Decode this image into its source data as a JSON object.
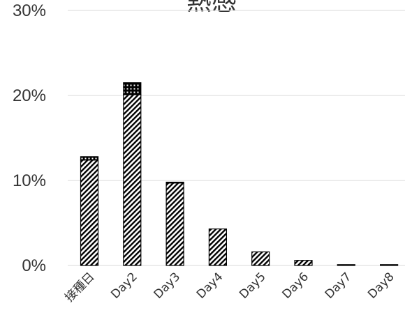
{
  "chart_data": {
    "type": "bar",
    "stacked": true,
    "title": "熱感",
    "xlabel": "",
    "ylabel": "",
    "categories": [
      "接種日",
      "Day2",
      "Day3",
      "Day4",
      "Day5",
      "Day6",
      "Day7",
      "Day8"
    ],
    "series": [
      {
        "values": [
          12.4,
          20.1,
          9.7,
          4.3,
          1.6,
          0.6,
          0.1,
          0.1
        ]
      },
      {
        "values": [
          0.4,
          1.4,
          0.1,
          0.0,
          0.0,
          0.0,
          0.0,
          0.0
        ]
      }
    ],
    "ylim": [
      0,
      30
    ],
    "yticks": [
      "0%",
      "10%",
      "20%",
      "30%"
    ],
    "grid": true,
    "legend": "none",
    "colors": {
      "bar_stroke": "#000000",
      "grid": "#d9d9d9",
      "text": "#333333"
    }
  }
}
